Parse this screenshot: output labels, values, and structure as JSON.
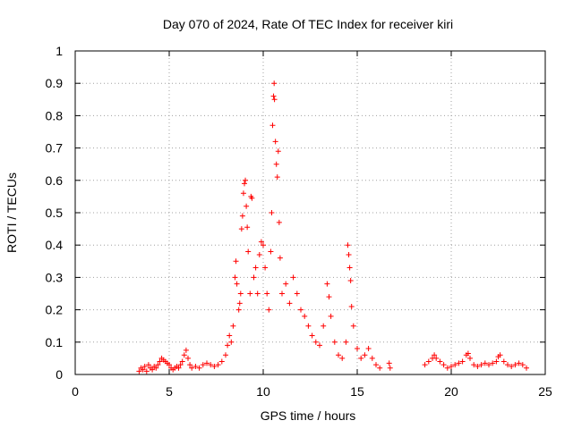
{
  "chart_data": {
    "type": "scatter",
    "title": "Day 070 of 2024, Rate Of TEC Index for receiver kiri",
    "xlabel": "GPS time / hours",
    "ylabel": "ROTI / TECUs",
    "xlim": [
      0,
      25
    ],
    "ylim": [
      0,
      1
    ],
    "x_ticks": [
      0,
      5,
      10,
      15,
      20,
      25
    ],
    "x_tick_labels": [
      "0",
      "5",
      "10",
      "15",
      "20",
      "25"
    ],
    "y_ticks": [
      0,
      0.1,
      0.2,
      0.3,
      0.4,
      0.5,
      0.6,
      0.7,
      0.8,
      0.9,
      1
    ],
    "y_tick_labels": [
      "0",
      "0.1",
      "0.2",
      "0.3",
      "0.4",
      "0.5",
      "0.6",
      "0.7",
      "0.8",
      "0.9",
      "1"
    ],
    "grid": true,
    "marker": "+",
    "series": [
      {
        "name": "ROTI",
        "color": "#ff0000",
        "points": [
          [
            3.4,
            0.01
          ],
          [
            3.5,
            0.02
          ],
          [
            3.6,
            0.015
          ],
          [
            3.7,
            0.025
          ],
          [
            3.8,
            0.01
          ],
          [
            3.9,
            0.03
          ],
          [
            4.0,
            0.02
          ],
          [
            4.1,
            0.015
          ],
          [
            4.2,
            0.025
          ],
          [
            4.3,
            0.02
          ],
          [
            4.4,
            0.03
          ],
          [
            4.5,
            0.04
          ],
          [
            4.6,
            0.05
          ],
          [
            4.7,
            0.045
          ],
          [
            4.8,
            0.04
          ],
          [
            4.9,
            0.035
          ],
          [
            5.0,
            0.03
          ],
          [
            5.1,
            0.02
          ],
          [
            5.2,
            0.015
          ],
          [
            5.3,
            0.02
          ],
          [
            5.4,
            0.025
          ],
          [
            5.5,
            0.02
          ],
          [
            5.6,
            0.03
          ],
          [
            5.7,
            0.04
          ],
          [
            5.8,
            0.06
          ],
          [
            5.9,
            0.075
          ],
          [
            6.0,
            0.05
          ],
          [
            6.1,
            0.03
          ],
          [
            6.2,
            0.02
          ],
          [
            6.4,
            0.025
          ],
          [
            6.6,
            0.02
          ],
          [
            6.8,
            0.03
          ],
          [
            7.0,
            0.035
          ],
          [
            7.2,
            0.03
          ],
          [
            7.4,
            0.025
          ],
          [
            7.6,
            0.03
          ],
          [
            7.8,
            0.04
          ],
          [
            8.0,
            0.06
          ],
          [
            8.1,
            0.09
          ],
          [
            8.2,
            0.12
          ],
          [
            8.3,
            0.1
          ],
          [
            8.4,
            0.15
          ],
          [
            8.5,
            0.3
          ],
          [
            8.55,
            0.35
          ],
          [
            8.6,
            0.28
          ],
          [
            8.7,
            0.2
          ],
          [
            8.75,
            0.22
          ],
          [
            8.8,
            0.25
          ],
          [
            8.85,
            0.45
          ],
          [
            8.9,
            0.49
          ],
          [
            8.95,
            0.56
          ],
          [
            9.0,
            0.59
          ],
          [
            9.05,
            0.6
          ],
          [
            9.1,
            0.52
          ],
          [
            9.15,
            0.455
          ],
          [
            9.2,
            0.38
          ],
          [
            9.3,
            0.25
          ],
          [
            9.35,
            0.55
          ],
          [
            9.4,
            0.545
          ],
          [
            9.5,
            0.3
          ],
          [
            9.6,
            0.33
          ],
          [
            9.7,
            0.25
          ],
          [
            9.8,
            0.37
          ],
          [
            9.9,
            0.41
          ],
          [
            10.0,
            0.4
          ],
          [
            10.1,
            0.33
          ],
          [
            10.2,
            0.25
          ],
          [
            10.3,
            0.2
          ],
          [
            10.4,
            0.38
          ],
          [
            10.45,
            0.5
          ],
          [
            10.5,
            0.77
          ],
          [
            10.55,
            0.86
          ],
          [
            10.58,
            0.9
          ],
          [
            10.6,
            0.85
          ],
          [
            10.65,
            0.72
          ],
          [
            10.7,
            0.65
          ],
          [
            10.75,
            0.61
          ],
          [
            10.8,
            0.69
          ],
          [
            10.85,
            0.47
          ],
          [
            10.9,
            0.36
          ],
          [
            11.0,
            0.25
          ],
          [
            11.2,
            0.28
          ],
          [
            11.4,
            0.22
          ],
          [
            11.6,
            0.3
          ],
          [
            11.8,
            0.25
          ],
          [
            12.0,
            0.2
          ],
          [
            12.2,
            0.18
          ],
          [
            12.4,
            0.15
          ],
          [
            12.6,
            0.12
          ],
          [
            12.8,
            0.1
          ],
          [
            13.0,
            0.09
          ],
          [
            13.2,
            0.15
          ],
          [
            13.4,
            0.28
          ],
          [
            13.5,
            0.24
          ],
          [
            13.6,
            0.18
          ],
          [
            13.8,
            0.1
          ],
          [
            14.0,
            0.06
          ],
          [
            14.2,
            0.05
          ],
          [
            14.4,
            0.1
          ],
          [
            14.5,
            0.4
          ],
          [
            14.55,
            0.37
          ],
          [
            14.6,
            0.33
          ],
          [
            14.65,
            0.29
          ],
          [
            14.7,
            0.21
          ],
          [
            14.8,
            0.15
          ],
          [
            15.0,
            0.08
          ],
          [
            15.2,
            0.05
          ],
          [
            15.4,
            0.06
          ],
          [
            15.6,
            0.08
          ],
          [
            15.8,
            0.05
          ],
          [
            16.0,
            0.03
          ],
          [
            16.2,
            0.02
          ],
          [
            16.7,
            0.035
          ],
          [
            16.75,
            0.02
          ],
          [
            18.6,
            0.03
          ],
          [
            18.8,
            0.04
          ],
          [
            19.0,
            0.05
          ],
          [
            19.1,
            0.06
          ],
          [
            19.2,
            0.05
          ],
          [
            19.4,
            0.04
          ],
          [
            19.6,
            0.03
          ],
          [
            19.8,
            0.02
          ],
          [
            20.0,
            0.025
          ],
          [
            20.2,
            0.03
          ],
          [
            20.4,
            0.035
          ],
          [
            20.6,
            0.04
          ],
          [
            20.8,
            0.06
          ],
          [
            20.9,
            0.065
          ],
          [
            21.0,
            0.05
          ],
          [
            21.2,
            0.03
          ],
          [
            21.4,
            0.025
          ],
          [
            21.6,
            0.03
          ],
          [
            21.8,
            0.035
          ],
          [
            22.0,
            0.03
          ],
          [
            22.2,
            0.035
          ],
          [
            22.4,
            0.04
          ],
          [
            22.5,
            0.055
          ],
          [
            22.6,
            0.06
          ],
          [
            22.8,
            0.04
          ],
          [
            23.0,
            0.03
          ],
          [
            23.2,
            0.025
          ],
          [
            23.4,
            0.03
          ],
          [
            23.6,
            0.035
          ],
          [
            23.8,
            0.03
          ],
          [
            24.0,
            0.02
          ]
        ]
      }
    ]
  }
}
